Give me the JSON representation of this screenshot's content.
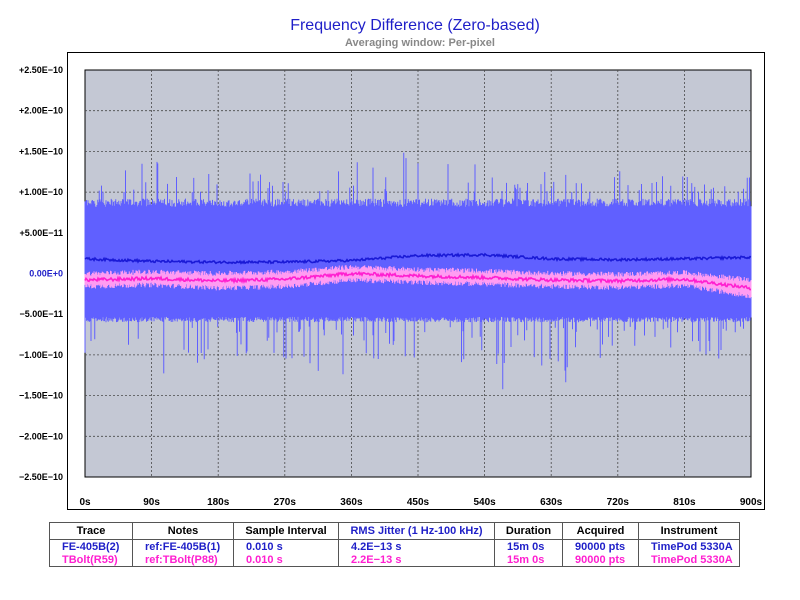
{
  "chart_data": {
    "type": "line",
    "title": "Frequency Difference (Zero-based)",
    "subtitle": "Averaging window: Per-pixel",
    "xlabel": "",
    "ylabel": "",
    "xlim": [
      0,
      900
    ],
    "ylim": [
      -2.5e-10,
      2.5e-10
    ],
    "grid": true,
    "x_ticks": [
      "0s",
      "90s",
      "180s",
      "270s",
      "360s",
      "450s",
      "540s",
      "630s",
      "720s",
      "810s",
      "900s"
    ],
    "y_ticks": [
      {
        "value": 2.5e-10,
        "label": "+2.50E−10"
      },
      {
        "value": 2e-10,
        "label": "+2.00E−10"
      },
      {
        "value": 1.5e-10,
        "label": "+1.50E−10"
      },
      {
        "value": 1e-10,
        "label": "+1.00E−10"
      },
      {
        "value": 5e-11,
        "label": "+5.00E−11"
      },
      {
        "value": 0,
        "label": "0.00E+0"
      },
      {
        "value": -5e-11,
        "label": "−5.00E−11"
      },
      {
        "value": -1e-10,
        "label": "−1.00E−10"
      },
      {
        "value": -1.5e-10,
        "label": "−1.50E−10"
      },
      {
        "value": -2e-10,
        "label": "−2.00E−10"
      },
      {
        "value": -2.5e-10,
        "label": "−2.50E−10"
      }
    ],
    "series": [
      {
        "name": "FE-405B(2)",
        "color": "#1a1ad6",
        "band_color": "#6060ff",
        "x": [
          0,
          90,
          180,
          270,
          360,
          450,
          540,
          630,
          720,
          810,
          900
        ],
        "mean": [
          1.8e-11,
          1.5e-11,
          1.4e-11,
          1.4e-11,
          1.6e-11,
          2.2e-11,
          2.3e-11,
          1.8e-11,
          1.7e-11,
          1.8e-11,
          2e-11
        ],
        "band_upper": [
          1e-10,
          1e-10,
          1e-10,
          1e-10,
          1e-10,
          1e-10,
          1e-10,
          1e-10,
          1e-10,
          1e-10,
          1e-10
        ],
        "band_lower": [
          -6.5e-11,
          -6.5e-11,
          -6.5e-11,
          -6.5e-11,
          -6.5e-11,
          -6.5e-11,
          -6.5e-11,
          -6.5e-11,
          -6.5e-11,
          -6.5e-11,
          -6.5e-11
        ],
        "peak_max": [
          1.15e-10,
          1.55e-10,
          1.25e-10,
          1.3e-10,
          1.45e-10,
          1.55e-10,
          1.35e-10,
          1.25e-10,
          1.3e-10,
          1.2e-10,
          1.2e-10
        ],
        "peak_min": [
          -1.25e-10,
          -1.3e-10,
          -1.1e-10,
          -1.2e-10,
          -1.25e-10,
          -1.2e-10,
          -1.45e-10,
          -1.4e-10,
          -1.25e-10,
          -1.1e-10,
          -1e-10
        ]
      },
      {
        "name": "TBolt(R59)",
        "color": "#ff1fd0",
        "band_color": "#ff9cf2",
        "x": [
          0,
          90,
          180,
          270,
          360,
          450,
          540,
          630,
          720,
          810,
          900
        ],
        "mean": [
          -8e-12,
          -6e-12,
          -9e-12,
          -7e-12,
          0,
          -3e-12,
          -5e-12,
          -8e-12,
          -9e-12,
          -7e-12,
          -1.8e-11
        ],
        "band_upper": [
          0,
          2e-12,
          0,
          2e-12,
          8e-12,
          5e-12,
          3e-12,
          0,
          -1e-12,
          1e-12,
          -8e-12
        ],
        "band_lower": [
          -1.6e-11,
          -1.4e-11,
          -1.8e-11,
          -1.6e-11,
          -8e-12,
          -1.1e-11,
          -1.3e-11,
          -1.6e-11,
          -1.7e-11,
          -1.5e-11,
          -2.8e-11
        ]
      }
    ]
  },
  "table": {
    "headers": [
      "Trace",
      "Notes",
      "Sample Interval",
      "RMS Jitter (1 Hz-100 kHz)",
      "Duration",
      "Acquired",
      "Instrument"
    ],
    "rows": [
      [
        "FE-405B(2)",
        "ref:FE-405B(1)",
        "0.010 s",
        "4.2E−13 s",
        "15m 0s",
        "90000 pts",
        "TimePod 5330A"
      ],
      [
        "TBolt(R59)",
        "ref:TBolt(P88)",
        "0.010 s",
        "2.2E−13 s",
        "15m 0s",
        "90000 pts",
        "TimePod 5330A"
      ]
    ]
  },
  "colors": {
    "title": "#1f1fc8",
    "subtitle": "#888888",
    "plot_background": "#c4c8d4",
    "grid": "#4a4a4a"
  }
}
